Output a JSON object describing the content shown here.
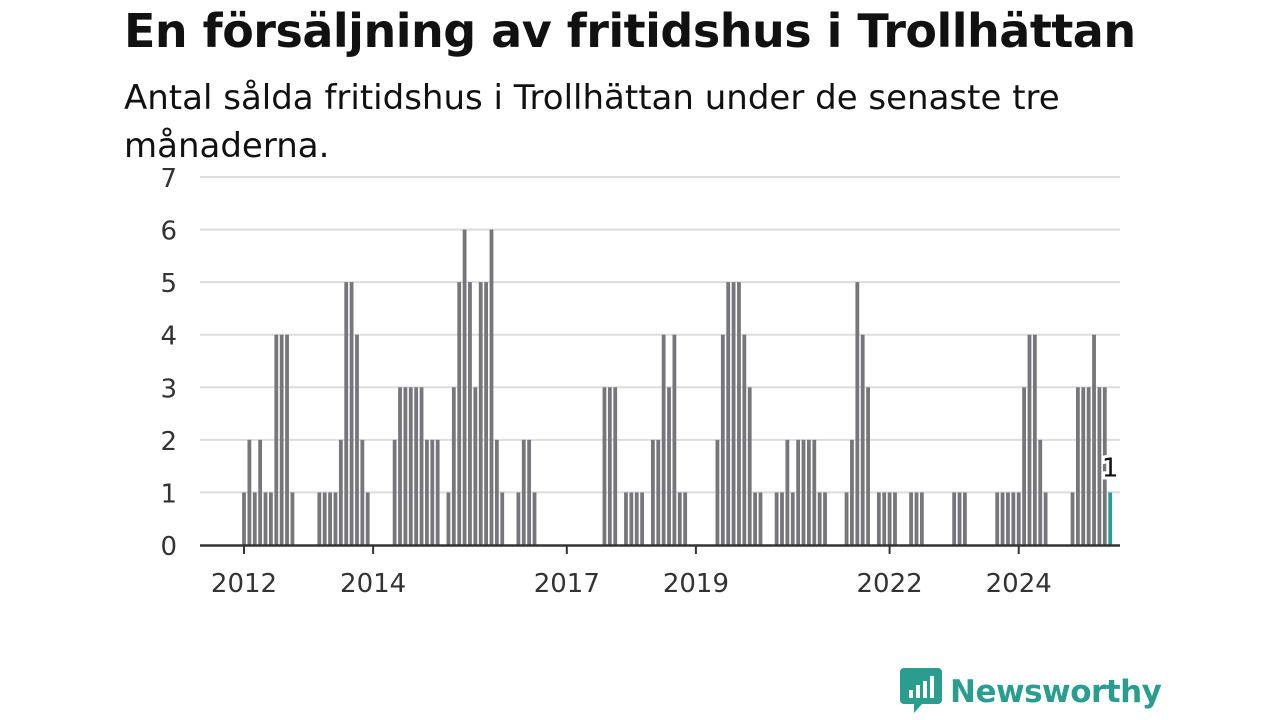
{
  "header": {
    "title": "En försäljning av fritidshus i Trollhättan",
    "subtitle": "Antal sålda fritidshus i Trollhättan under de senaste tre månaderna."
  },
  "brand": {
    "name": "Newsworthy",
    "icon": "newsworthy-logo-icon",
    "color": "#2a9d8f"
  },
  "chart_data": {
    "type": "bar",
    "start": "2012-01",
    "x_tick_labels": [
      "2012",
      "2014",
      "2017",
      "2019",
      "2022",
      "2024"
    ],
    "y_ticks": [
      0,
      1,
      2,
      3,
      4,
      5,
      6,
      7
    ],
    "ylim": [
      0,
      7
    ],
    "grid": true,
    "bar_color": "#77767b",
    "highlight_color": "#2a9d8f",
    "highlight_label": "1",
    "values": [
      1,
      2,
      1,
      2,
      1,
      1,
      4,
      4,
      4,
      1,
      0,
      0,
      0,
      0,
      1,
      1,
      1,
      1,
      2,
      5,
      5,
      4,
      2,
      1,
      0,
      0,
      0,
      0,
      2,
      3,
      3,
      3,
      3,
      3,
      2,
      2,
      2,
      0,
      1,
      3,
      5,
      6,
      5,
      3,
      5,
      5,
      6,
      2,
      1,
      0,
      0,
      1,
      2,
      2,
      1,
      0,
      0,
      0,
      0,
      0,
      0,
      0,
      0,
      0,
      0,
      0,
      0,
      3,
      3,
      3,
      0,
      1,
      1,
      1,
      1,
      0,
      2,
      2,
      4,
      3,
      4,
      1,
      1,
      0,
      0,
      0,
      0,
      0,
      2,
      4,
      5,
      5,
      5,
      4,
      3,
      1,
      1,
      0,
      0,
      1,
      1,
      2,
      1,
      2,
      2,
      2,
      2,
      1,
      1,
      0,
      0,
      0,
      1,
      2,
      5,
      4,
      3,
      0,
      1,
      1,
      1,
      1,
      0,
      0,
      1,
      1,
      1,
      0,
      0,
      0,
      0,
      0,
      1,
      1,
      1,
      0,
      0,
      0,
      0,
      0,
      1,
      1,
      1,
      1,
      1,
      3,
      4,
      4,
      2,
      1,
      0,
      0,
      0,
      0,
      1,
      3,
      3,
      3,
      4,
      3,
      3,
      1
    ]
  }
}
